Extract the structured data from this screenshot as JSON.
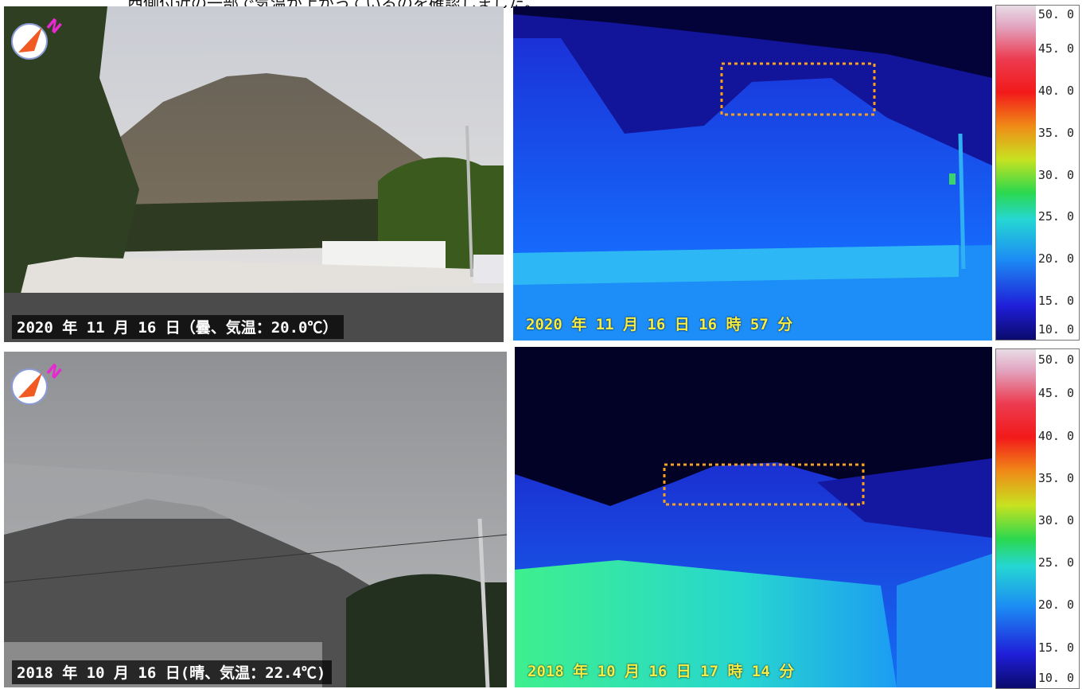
{
  "intro_text": "西側付近の一部で気温が上がっているのを確認しました。",
  "panels": {
    "photo_2020": {
      "caption": "2020 年 11 月 16 日（曇、気温：20.0℃）"
    },
    "thermal_2020": {
      "caption": "2020 年 11 月 16 日 16 時 57 分"
    },
    "photo_2018": {
      "caption": "2018 年 10 月 16 日(晴、気温：22.4℃)"
    },
    "thermal_2018": {
      "caption": "2018 年 10 月 16 日 17 時 14 分"
    }
  },
  "compass": {
    "north_label": "N",
    "colors": {
      "needle": "#f15a22",
      "label": "#e829d2"
    }
  },
  "temperature_scale": {
    "ticks": [
      "50. 0",
      "45. 0",
      "40. 0",
      "35. 0",
      "30. 0",
      "25. 0",
      "20. 0",
      "15. 0",
      "10. 0"
    ],
    "min": 10.0,
    "max": 50.0
  },
  "highlight_box_color": "#f5a21a"
}
